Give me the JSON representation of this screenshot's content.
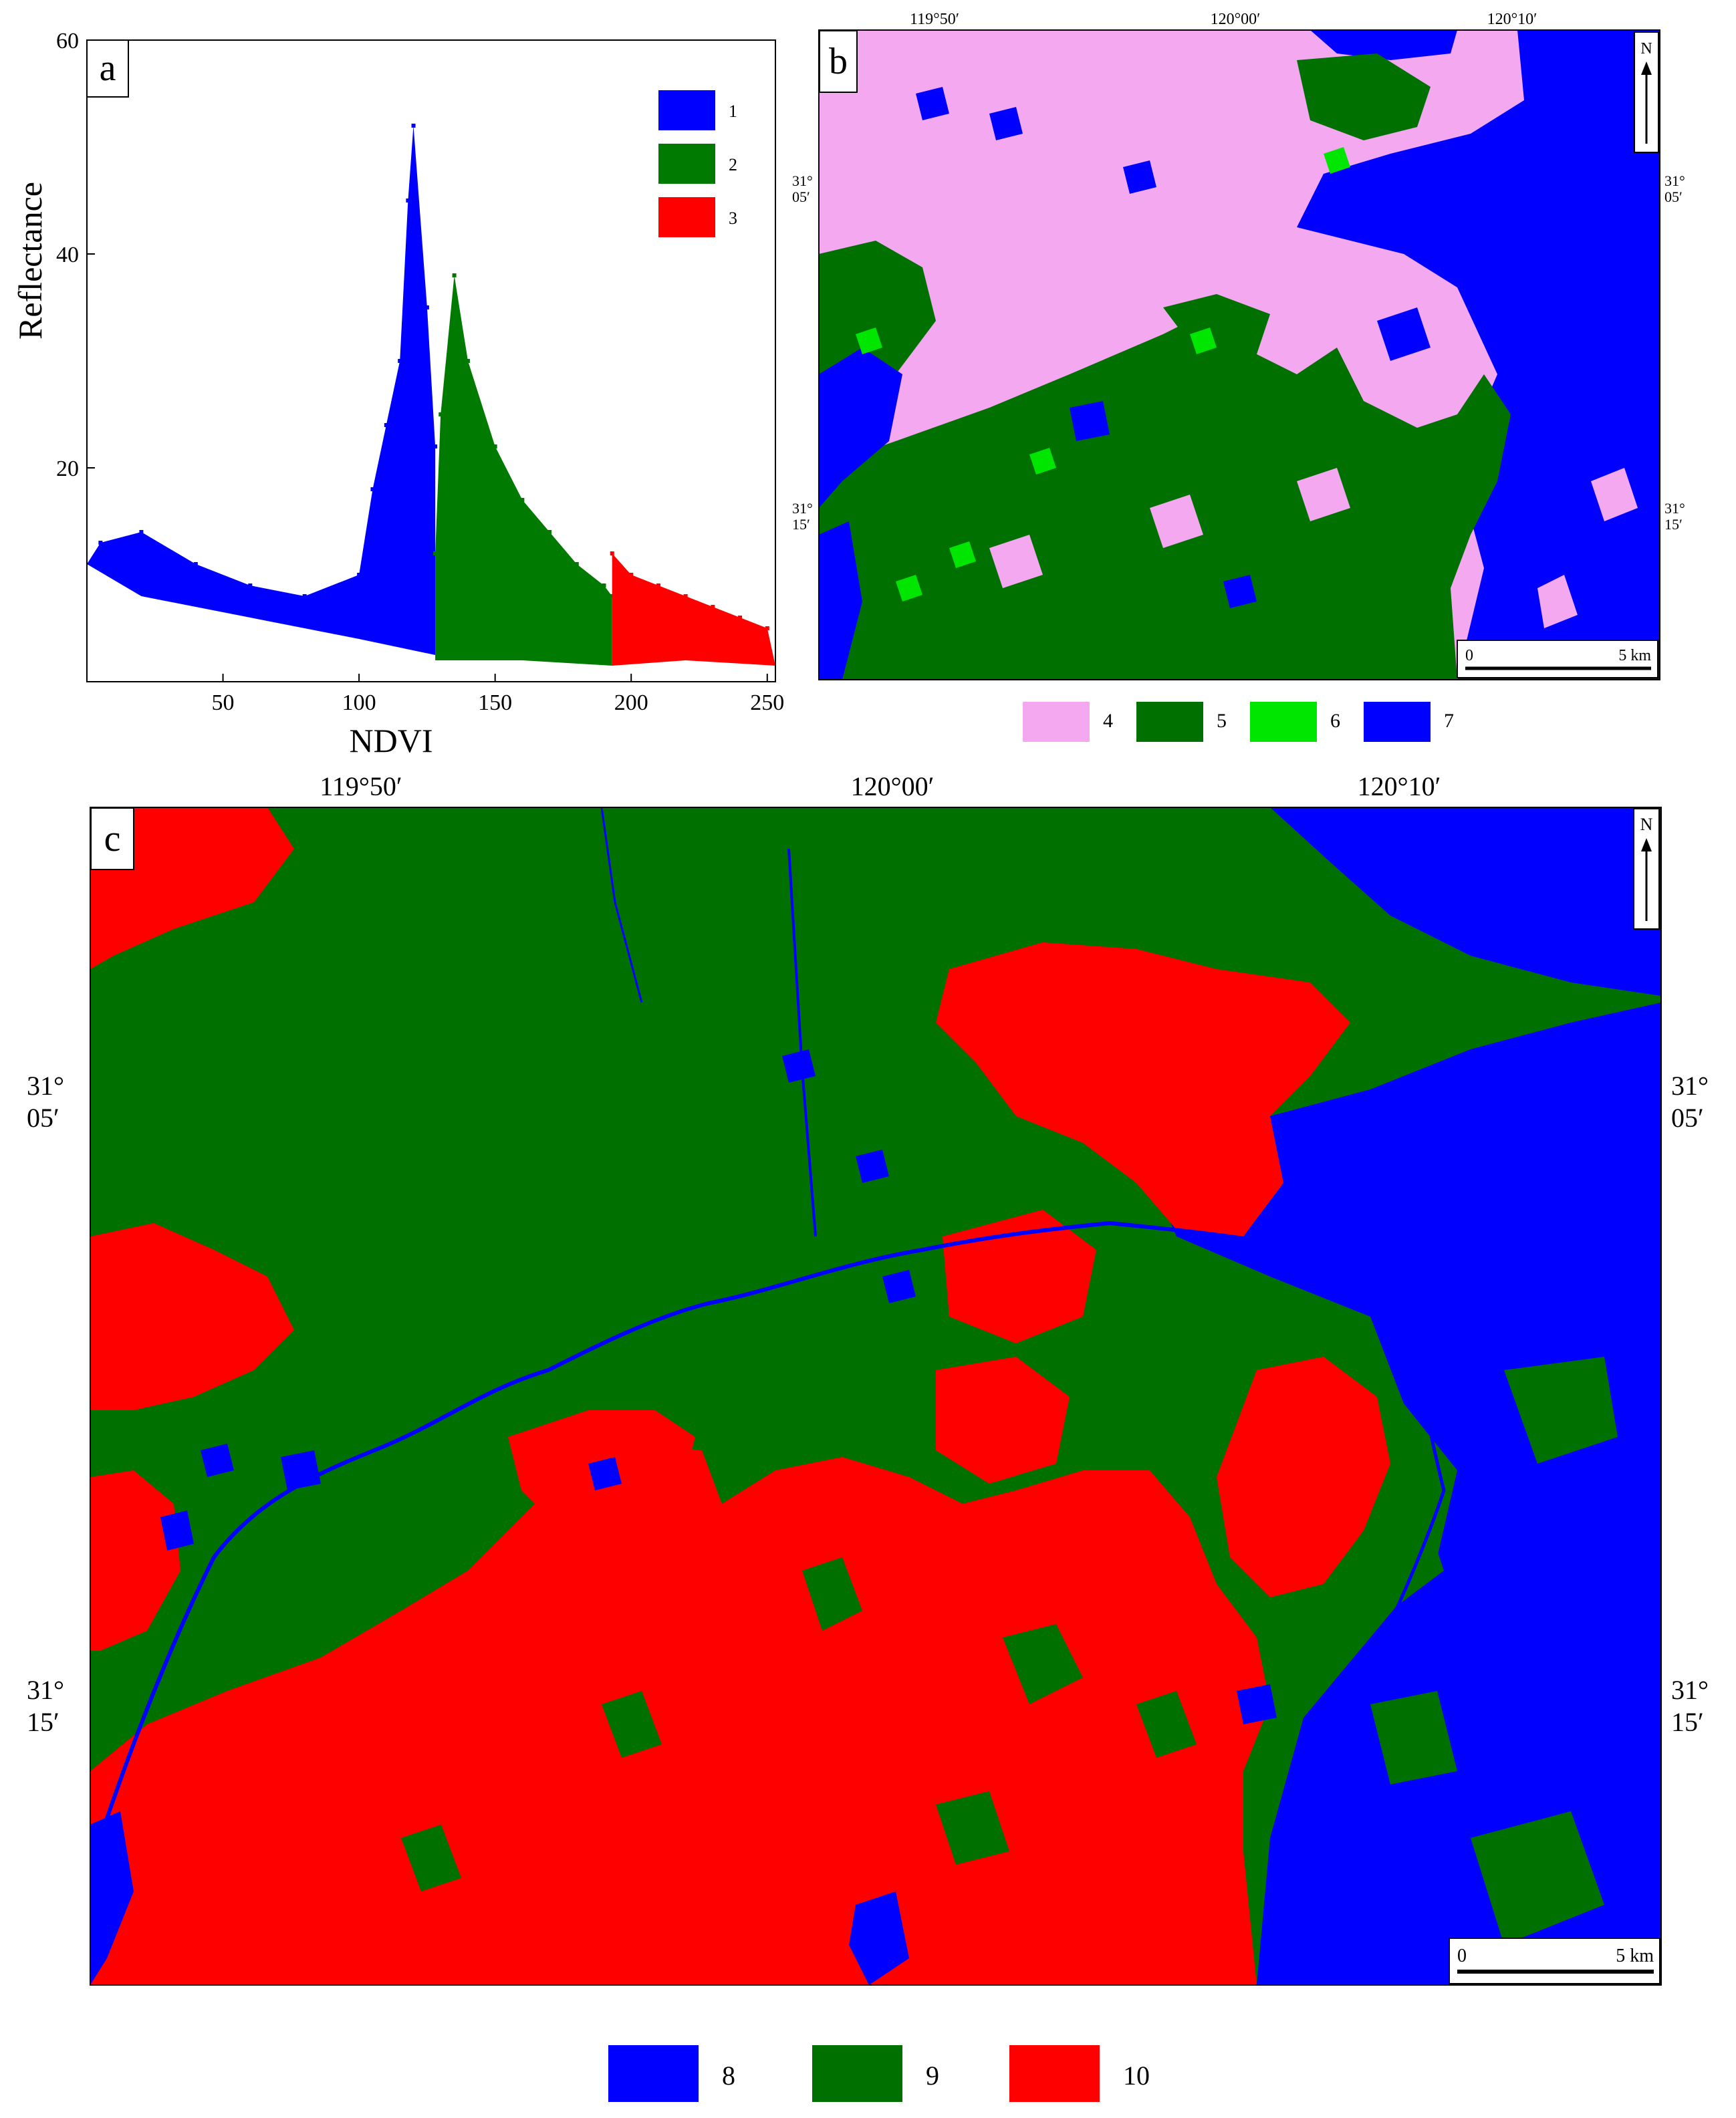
{
  "panel_a": {
    "letter": "a",
    "chart_data": {
      "type": "scatter",
      "xlabel": "NDVI",
      "ylabel": "Reflectance",
      "xlim": [
        0,
        253
      ],
      "ylim": [
        0,
        60
      ],
      "x_ticks": [
        50,
        100,
        150,
        200,
        250
      ],
      "y_ticks": [
        20,
        40,
        60
      ],
      "grid": false,
      "legend_position": "top-right",
      "series": [
        {
          "name": "1",
          "color": "#0000ff",
          "ndvi_range": [
            0,
            128
          ],
          "points": [
            [
              5,
              13
            ],
            [
              20,
              14
            ],
            [
              40,
              11
            ],
            [
              60,
              9
            ],
            [
              80,
              8
            ],
            [
              100,
              10
            ],
            [
              105,
              18
            ],
            [
              110,
              24
            ],
            [
              115,
              30
            ],
            [
              118,
              45
            ],
            [
              120,
              52
            ],
            [
              125,
              35
            ],
            [
              128,
              22
            ]
          ]
        },
        {
          "name": "2",
          "color": "#007a00",
          "ndvi_range": [
            128,
            193
          ],
          "points": [
            [
              128,
              12
            ],
            [
              130,
              25
            ],
            [
              135,
              38
            ],
            [
              140,
              30
            ],
            [
              150,
              22
            ],
            [
              160,
              17
            ],
            [
              170,
              14
            ],
            [
              180,
              11
            ],
            [
              190,
              9
            ],
            [
              193,
              8
            ]
          ]
        },
        {
          "name": "3",
          "color": "#ff0000",
          "ndvi_range": [
            193,
            253
          ],
          "points": [
            [
              193,
              12
            ],
            [
              200,
              10
            ],
            [
              210,
              9
            ],
            [
              220,
              8
            ],
            [
              230,
              7
            ],
            [
              240,
              6
            ],
            [
              250,
              5
            ]
          ]
        }
      ]
    }
  },
  "panel_b": {
    "letter": "b",
    "lon_labels": [
      "119°50′",
      "120°00′",
      "120°10′"
    ],
    "lat_labels": [
      [
        "31°",
        "05′"
      ],
      [
        "31°",
        "15′"
      ]
    ],
    "north": "N",
    "scale": {
      "start": "0",
      "end": "5 km"
    },
    "legend": [
      {
        "label": "4",
        "color": "#f4a8f0"
      },
      {
        "label": "5",
        "color": "#007000"
      },
      {
        "label": "6",
        "color": "#00e600"
      },
      {
        "label": "7",
        "color": "#0000ff"
      }
    ]
  },
  "panel_c": {
    "letter": "c",
    "lon_labels": [
      "119°50′",
      "120°00′",
      "120°10′"
    ],
    "lat_labels": [
      [
        "31°",
        "05′"
      ],
      [
        "31°",
        "15′"
      ]
    ],
    "north": "N",
    "scale": {
      "start": "0",
      "end": "5 km"
    },
    "legend": [
      {
        "label": "8",
        "color": "#0000ff"
      },
      {
        "label": "9",
        "color": "#007000"
      },
      {
        "label": "10",
        "color": "#ff0000"
      }
    ]
  }
}
